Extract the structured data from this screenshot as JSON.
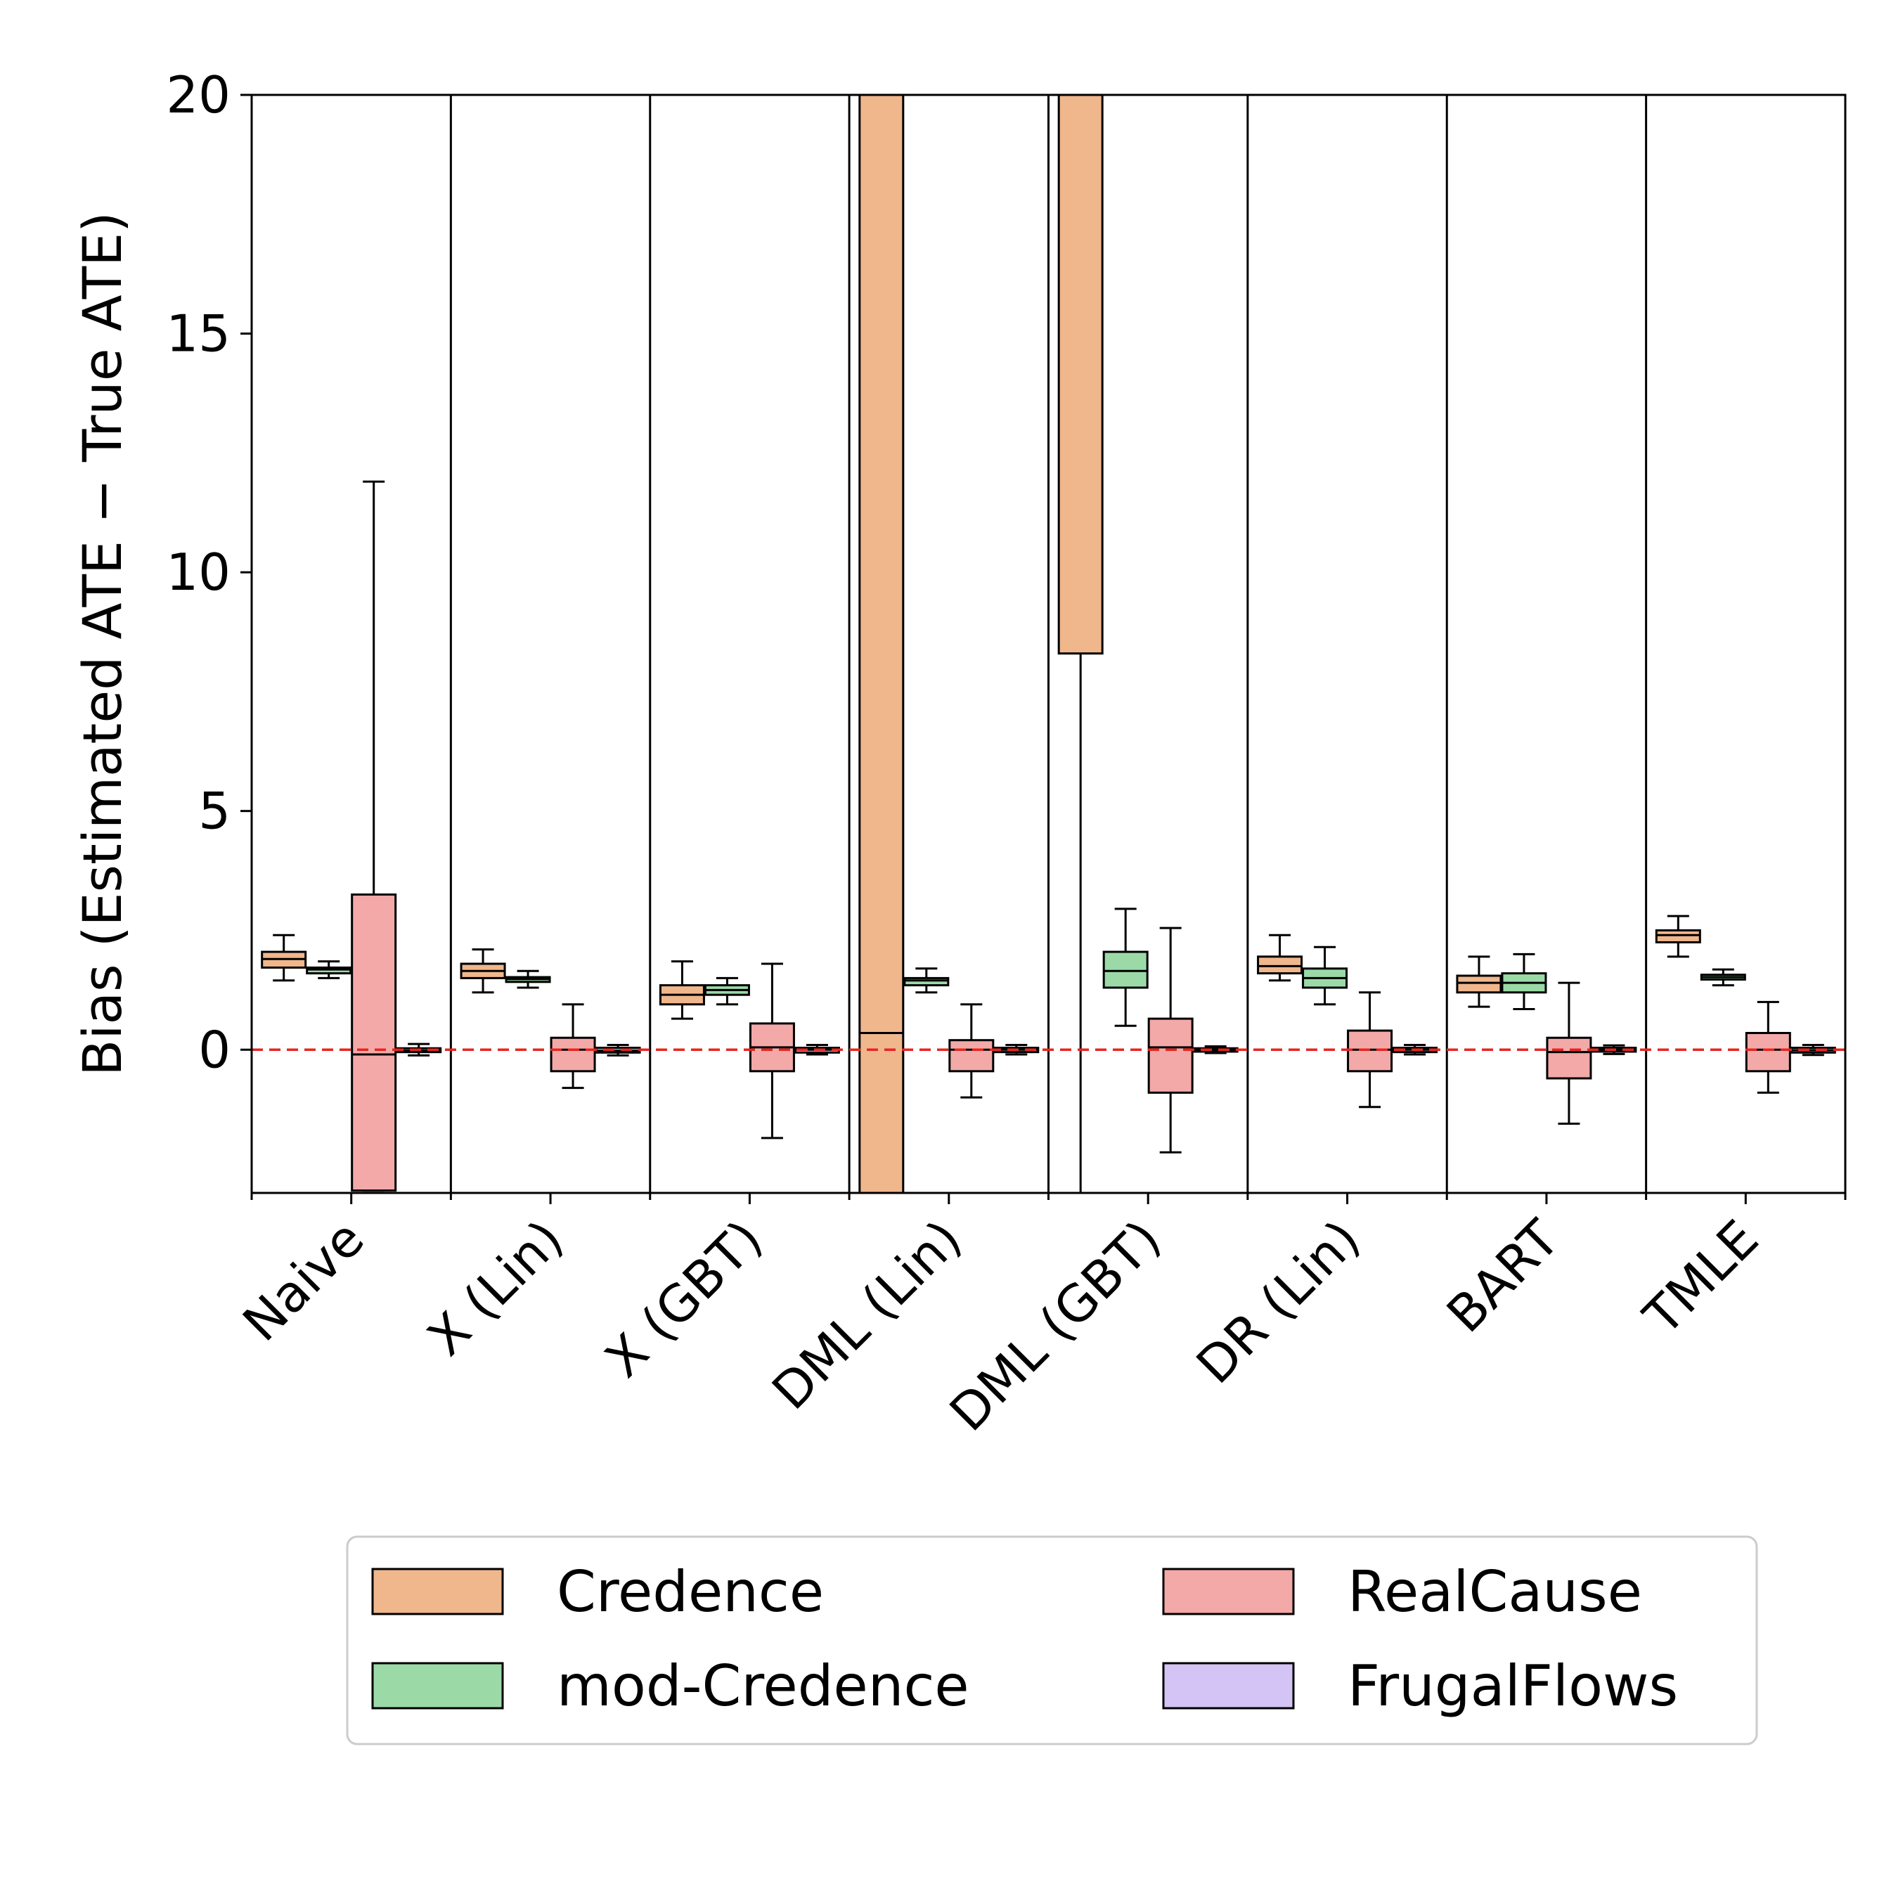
{
  "chart_data": {
    "type": "box",
    "title": "",
    "xlabel": "",
    "ylabel": "Bias (Estimated ATE − True ATE)",
    "ylim": [
      -3,
      20
    ],
    "yticks": [
      0,
      5,
      10,
      15,
      20
    ],
    "reference_line": {
      "y": 0,
      "style": "dashed",
      "color": "#e8251f"
    },
    "grid": false,
    "legend_position": "bottom",
    "colors": {
      "Credence": "#f0b68c",
      "mod-Credence": "#9bdaa7",
      "RealCause": "#f2a9a8",
      "FrugalFlows": "#d3c4f5"
    },
    "categories": [
      "Naive",
      "X (Lin)",
      "X (GBT)",
      "DML (Lin)",
      "DML (GBT)",
      "DR (Lin)",
      "BART",
      "TMLE"
    ],
    "series": [
      {
        "name": "Credence",
        "boxes": [
          {
            "whislo": 1.45,
            "q1": 1.72,
            "med": 1.9,
            "q3": 2.05,
            "whishi": 2.4
          },
          {
            "whislo": 1.2,
            "q1": 1.5,
            "med": 1.65,
            "q3": 1.8,
            "whishi": 2.1
          },
          {
            "whislo": 0.65,
            "q1": 0.95,
            "med": 1.15,
            "q3": 1.35,
            "whishi": 1.85
          },
          {
            "whislo": -3,
            "q1": -3,
            "med": 0.35,
            "q3": 20,
            "whishi": 20
          },
          {
            "whislo": -3,
            "q1": 8.3,
            "med": 20,
            "q3": 20,
            "whishi": 20
          },
          {
            "whislo": 1.45,
            "q1": 1.6,
            "med": 1.75,
            "q3": 1.95,
            "whishi": 2.4
          },
          {
            "whislo": 0.9,
            "q1": 1.2,
            "med": 1.4,
            "q3": 1.55,
            "whishi": 1.95
          },
          {
            "whislo": 1.95,
            "q1": 2.25,
            "med": 2.4,
            "q3": 2.5,
            "whishi": 2.8
          }
        ]
      },
      {
        "name": "mod-Credence",
        "boxes": [
          {
            "whislo": 1.5,
            "q1": 1.6,
            "med": 1.68,
            "q3": 1.72,
            "whishi": 1.85
          },
          {
            "whislo": 1.3,
            "q1": 1.42,
            "med": 1.48,
            "q3": 1.52,
            "whishi": 1.65
          },
          {
            "whislo": 0.95,
            "q1": 1.15,
            "med": 1.25,
            "q3": 1.35,
            "whishi": 1.5
          },
          {
            "whislo": 1.2,
            "q1": 1.35,
            "med": 1.45,
            "q3": 1.5,
            "whishi": 1.7
          },
          {
            "whislo": 0.5,
            "q1": 1.3,
            "med": 1.65,
            "q3": 2.05,
            "whishi": 2.95
          },
          {
            "whislo": 0.95,
            "q1": 1.3,
            "med": 1.5,
            "q3": 1.7,
            "whishi": 2.15
          },
          {
            "whislo": 0.85,
            "q1": 1.2,
            "med": 1.4,
            "q3": 1.6,
            "whishi": 2.0
          },
          {
            "whislo": 1.35,
            "q1": 1.47,
            "med": 1.52,
            "q3": 1.57,
            "whishi": 1.68
          }
        ]
      },
      {
        "name": "RealCause",
        "boxes": [
          {
            "whislo": -2.95,
            "q1": -2.95,
            "med": -0.1,
            "q3": 3.25,
            "whishi": 11.9
          },
          {
            "whislo": -0.8,
            "q1": -0.45,
            "med": 0.0,
            "q3": 0.25,
            "whishi": 0.95
          },
          {
            "whislo": -1.85,
            "q1": -0.45,
            "med": 0.05,
            "q3": 0.55,
            "whishi": 1.8
          },
          {
            "whislo": -1.0,
            "q1": -0.45,
            "med": 0.0,
            "q3": 0.2,
            "whishi": 0.95
          },
          {
            "whislo": -2.15,
            "q1": -0.9,
            "med": 0.05,
            "q3": 0.65,
            "whishi": 2.55
          },
          {
            "whislo": -1.2,
            "q1": -0.45,
            "med": 0.0,
            "q3": 0.4,
            "whishi": 1.2
          },
          {
            "whislo": -1.55,
            "q1": -0.6,
            "med": -0.05,
            "q3": 0.25,
            "whishi": 1.4
          },
          {
            "whislo": -0.9,
            "q1": -0.45,
            "med": 0.0,
            "q3": 0.35,
            "whishi": 1.0
          }
        ]
      },
      {
        "name": "FrugalFlows",
        "boxes": [
          {
            "whislo": -0.12,
            "q1": -0.05,
            "med": -0.02,
            "q3": 0.03,
            "whishi": 0.12
          },
          {
            "whislo": -0.12,
            "q1": -0.06,
            "med": -0.02,
            "q3": 0.04,
            "whishi": 0.1
          },
          {
            "whislo": -0.1,
            "q1": -0.06,
            "med": 0.0,
            "q3": 0.04,
            "whishi": 0.1
          },
          {
            "whislo": -0.1,
            "q1": -0.05,
            "med": 0.0,
            "q3": 0.04,
            "whishi": 0.1
          },
          {
            "whislo": -0.07,
            "q1": -0.04,
            "med": 0.0,
            "q3": 0.03,
            "whishi": 0.07
          },
          {
            "whislo": -0.1,
            "q1": -0.05,
            "med": 0.0,
            "q3": 0.04,
            "whishi": 0.1
          },
          {
            "whislo": -0.09,
            "q1": -0.04,
            "med": 0.0,
            "q3": 0.04,
            "whishi": 0.09
          },
          {
            "whislo": -0.11,
            "q1": -0.06,
            "med": -0.01,
            "q3": 0.04,
            "whishi": 0.1
          }
        ]
      }
    ]
  }
}
